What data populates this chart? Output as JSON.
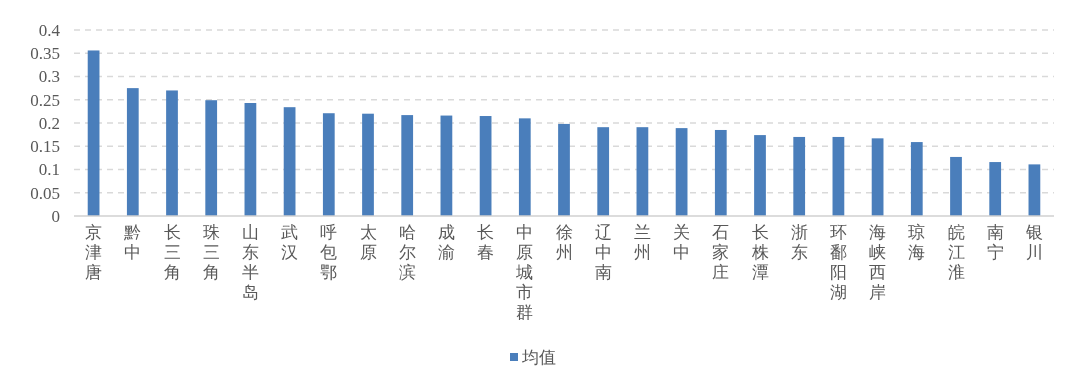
{
  "chart_data": {
    "type": "bar",
    "categories": [
      "京津唐",
      "黔中",
      "长三角",
      "珠三角",
      "山东半岛",
      "武汉",
      "呼包鄂",
      "太原",
      "哈尔滨",
      "成渝",
      "长春",
      "中原城市群",
      "徐州",
      "辽中南",
      "兰州",
      "关中",
      "石家庄",
      "长株潭",
      "浙东",
      "环鄱阳湖",
      "海峡西岸",
      "琼海",
      "皖江淮",
      "南宁",
      "银川"
    ],
    "series": [
      {
        "name": "均值",
        "color": "#4a7ebb",
        "values": [
          0.356,
          0.275,
          0.27,
          0.249,
          0.243,
          0.234,
          0.221,
          0.22,
          0.217,
          0.216,
          0.215,
          0.21,
          0.198,
          0.191,
          0.191,
          0.189,
          0.185,
          0.174,
          0.17,
          0.17,
          0.167,
          0.159,
          0.127,
          0.116,
          0.111
        ]
      }
    ],
    "ylim": [
      0,
      0.4
    ],
    "yticks": [
      0,
      0.05,
      0.1,
      0.15,
      0.2,
      0.25,
      0.3,
      0.35,
      0.4
    ],
    "grid": "y",
    "legend": "bottom"
  }
}
